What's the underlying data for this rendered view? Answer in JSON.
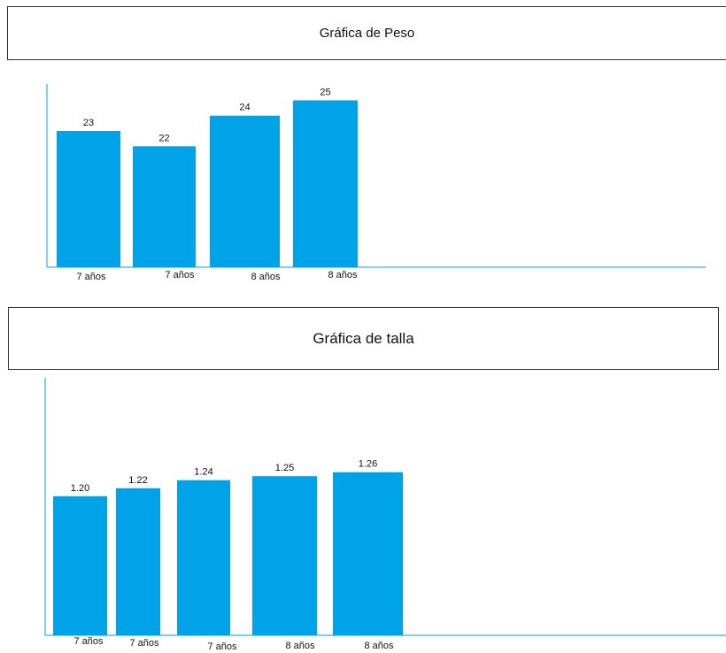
{
  "chart_data": [
    {
      "type": "bar",
      "title": "Gráfica de Peso",
      "categories": [
        "7 años",
        "7 años",
        "8 años",
        "8 años"
      ],
      "values": [
        23,
        22,
        24,
        25
      ],
      "data_labels": [
        "23",
        "22",
        "24",
        "25"
      ],
      "bar_color": "#00A2E8",
      "axis_color": "#00A2E8"
    },
    {
      "type": "bar",
      "title": "Gráfica de talla",
      "categories": [
        "7 años",
        "7 años",
        "7 años",
        "8 años",
        "8 años"
      ],
      "values": [
        1.2,
        1.22,
        1.24,
        1.25,
        1.26
      ],
      "data_labels": [
        "1.20",
        "1.22",
        "1.24",
        "1.25",
        "1.26"
      ],
      "bar_color": "#00A2E8",
      "axis_color": "#00A2E8"
    }
  ]
}
